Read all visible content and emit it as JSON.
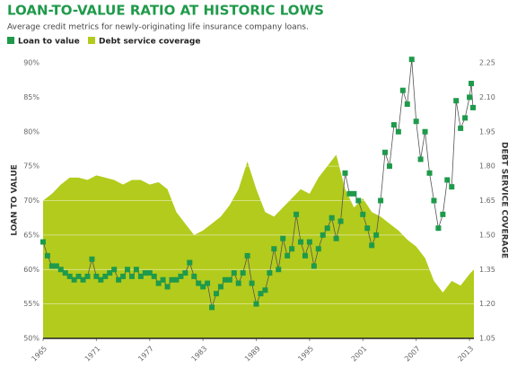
{
  "chart_data": {
    "type": "line",
    "title": "LOAN-TO-VALUE RATIO AT HISTORIC LOWS",
    "subtitle": "Average credit metrics for newly-originating life insurance company loans.",
    "y_label": "LOAN TO VALUE",
    "y2_label": "DEBT SERVICE COVERAGE",
    "xlim": [
      1965,
      2013.5
    ],
    "xticks": [
      1965,
      1971,
      1977,
      1983,
      1989,
      1995,
      2001,
      2007,
      2013
    ],
    "ylim": [
      50,
      90
    ],
    "yticks": [
      {
        "value": 50,
        "label": "50%"
      },
      {
        "value": 55,
        "label": "55%"
      },
      {
        "value": 60,
        "label": "60%"
      },
      {
        "value": 65,
        "label": "65%"
      },
      {
        "value": 70,
        "label": "70%"
      },
      {
        "value": 75,
        "label": "75%"
      },
      {
        "value": 80,
        "label": "80%"
      },
      {
        "value": 85,
        "label": "85%"
      },
      {
        "value": 90,
        "label": "90%"
      }
    ],
    "y2lim": [
      1.05,
      2.25
    ],
    "y2ticks": [
      1.05,
      {
        "value": 1.2,
        "label": "1.20"
      },
      1.35,
      {
        "value": 1.5,
        "label": "1.50"
      },
      1.65,
      {
        "value": 1.8,
        "label": "1.80"
      },
      1.95,
      {
        "value": 2.1,
        "label": "2.10"
      },
      2.25
    ],
    "grid": true,
    "series": [
      {
        "name": "Loan to value",
        "color": "#1e9a4b",
        "mark": "line",
        "x": [
          1965,
          1965.5,
          1966,
          1966.5,
          1967,
          1967.5,
          1968,
          1968.5,
          1969,
          1969.5,
          1970,
          1970.5,
          1971,
          1971.5,
          1972,
          1972.5,
          1973,
          1973.5,
          1974,
          1974.5,
          1975,
          1975.5,
          1976,
          1976.5,
          1977,
          1977.5,
          1978,
          1978.5,
          1979,
          1979.5,
          1980,
          1980.5,
          1981,
          1981.5,
          1982,
          1982.5,
          1983,
          1983.5,
          1984,
          1984.5,
          1985,
          1985.5,
          1986,
          1986.5,
          1987,
          1987.5,
          1988,
          1988.5,
          1989,
          1989.5,
          1990,
          1990.5,
          1991,
          1991.5,
          1992,
          1992.5,
          1993,
          1993.5,
          1994,
          1994.5,
          1995,
          1995.5,
          1996,
          1996.5,
          1997,
          1997.5,
          1998,
          1998.5,
          1999,
          1999.5,
          2000,
          2000.5,
          2001,
          2001.5,
          2002,
          2002.5,
          2003,
          2003.5,
          2004,
          2004.5,
          2005,
          2005.5,
          2006,
          2006.5,
          2007,
          2007.5,
          2008,
          2008.5,
          2009,
          2009.5,
          2010,
          2010.5,
          2011,
          2011.5,
          2012,
          2012.5,
          2013,
          2013.2,
          2013.4
        ],
        "values": [
          64,
          62,
          60.5,
          60.5,
          60,
          59.5,
          59,
          58.5,
          59,
          58.5,
          59,
          61.5,
          59,
          58.5,
          59,
          59.5,
          60,
          58.5,
          59,
          60,
          59,
          60,
          59,
          59.5,
          59.5,
          59,
          58,
          58.5,
          57.5,
          58.5,
          58.5,
          59,
          59.5,
          61,
          59,
          58,
          57.5,
          58,
          54.5,
          56.5,
          57.5,
          58.5,
          58.5,
          59.5,
          58,
          59.5,
          62,
          58,
          55,
          56.5,
          57,
          59.5,
          63,
          60,
          64.5,
          62,
          63,
          68,
          64,
          62,
          64,
          60.5,
          63,
          65,
          66,
          67.5,
          64.5,
          67,
          74,
          71,
          71,
          70,
          68,
          66,
          63.5,
          65,
          70,
          77,
          75,
          81,
          80,
          86,
          84,
          90.5,
          81.5,
          76,
          80,
          74,
          70,
          66,
          68,
          73,
          72,
          84.5,
          80.5,
          82,
          85,
          87,
          83.5
        ]
      },
      {
        "name": "Debt service coverage",
        "color": "#b3cb1c",
        "mark": "area",
        "axis": "y2",
        "x": [
          1965,
          1966,
          1967,
          1968,
          1969,
          1970,
          1971,
          1972,
          1973,
          1974,
          1975,
          1976,
          1977,
          1978,
          1979,
          1980,
          1981,
          1982,
          1983,
          1984,
          1985,
          1986,
          1987,
          1988,
          1989,
          1990,
          1991,
          1992,
          1993,
          1994,
          1995,
          1996,
          1997,
          1998,
          1999,
          2000,
          2001,
          2002,
          2003,
          2004,
          2005,
          2006,
          2007,
          2008,
          2009,
          2010,
          2011,
          2012,
          2013,
          2013.5
        ],
        "values": [
          1.65,
          1.68,
          1.72,
          1.75,
          1.75,
          1.74,
          1.76,
          1.75,
          1.74,
          1.72,
          1.74,
          1.74,
          1.72,
          1.73,
          1.7,
          1.6,
          1.55,
          1.5,
          1.52,
          1.55,
          1.58,
          1.63,
          1.7,
          1.82,
          1.7,
          1.6,
          1.58,
          1.62,
          1.66,
          1.7,
          1.68,
          1.75,
          1.8,
          1.85,
          1.7,
          1.62,
          1.66,
          1.6,
          1.58,
          1.55,
          1.52,
          1.48,
          1.45,
          1.4,
          1.3,
          1.25,
          1.3,
          1.28,
          1.33,
          1.35
        ]
      }
    ]
  }
}
